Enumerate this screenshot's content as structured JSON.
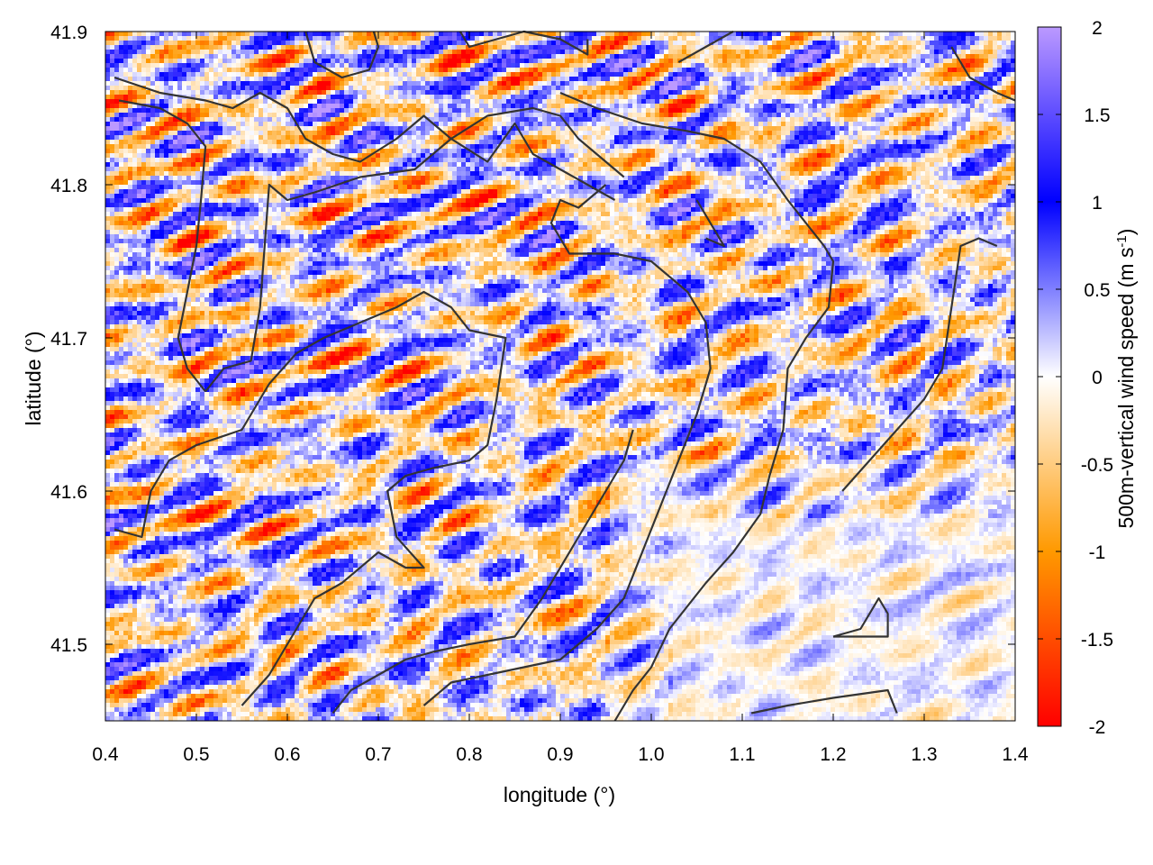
{
  "chart_data": {
    "type": "heatmap",
    "title": "",
    "xlabel": "longitude (°)",
    "ylabel": "latitude (°)",
    "xlim": [
      0.4,
      1.4
    ],
    "ylim": [
      41.45,
      41.9
    ],
    "x_ticks": [
      {
        "value": 0.4,
        "label": "0.4"
      },
      {
        "value": 0.5,
        "label": "0.5"
      },
      {
        "value": 0.6,
        "label": "0.6"
      },
      {
        "value": 0.7,
        "label": "0.7"
      },
      {
        "value": 0.8,
        "label": "0.8"
      },
      {
        "value": 0.9,
        "label": "0.9"
      },
      {
        "value": 1.0,
        "label": "1.0"
      },
      {
        "value": 1.1,
        "label": "1.1"
      },
      {
        "value": 1.2,
        "label": "1.2"
      },
      {
        "value": 1.3,
        "label": "1.3"
      },
      {
        "value": 1.4,
        "label": "1.4"
      }
    ],
    "y_ticks": [
      {
        "value": 41.5,
        "label": "41.5"
      },
      {
        "value": 41.6,
        "label": "41.6"
      },
      {
        "value": 41.7,
        "label": "41.7"
      },
      {
        "value": 41.8,
        "label": "41.8"
      },
      {
        "value": 41.9,
        "label": "41.9"
      }
    ],
    "colorbar": {
      "label_main": "500m-vertical wind speed (m s",
      "label_sup": "-1",
      "label_close": ")",
      "range": [
        -2,
        2
      ],
      "ticks": [
        {
          "value": 2,
          "label": "2"
        },
        {
          "value": 1.5,
          "label": "1.5"
        },
        {
          "value": 1,
          "label": "1"
        },
        {
          "value": 0.5,
          "label": "0.5"
        },
        {
          "value": 0,
          "label": "0"
        },
        {
          "value": -0.5,
          "label": "-0.5"
        },
        {
          "value": -1,
          "label": "-1"
        },
        {
          "value": -1.5,
          "label": "-1.5"
        },
        {
          "value": -2,
          "label": "-2"
        }
      ],
      "stops": [
        {
          "value": -2,
          "color": "#ff0000"
        },
        {
          "value": -1,
          "color": "#ff9900"
        },
        {
          "value": 0,
          "color": "#ffffff"
        },
        {
          "value": 1,
          "color": "#0000ff"
        },
        {
          "value": 2,
          "color": "#bb99ff"
        }
      ]
    },
    "field_description": "pseudo-random gridded vertical wind speed field on ~0.005° cells, values mostly between -1.5 and 1.5 m/s; calmer (near zero) in the lower-right region",
    "contours": [
      [
        [
          0.41,
          41.87
        ],
        [
          0.46,
          41.86
        ],
        [
          0.51,
          41.855
        ],
        [
          0.54,
          41.85
        ],
        [
          0.57,
          41.86
        ],
        [
          0.6,
          41.85
        ],
        [
          0.62,
          41.83
        ],
        [
          0.65,
          41.82
        ],
        [
          0.68,
          41.815
        ],
        [
          0.72,
          41.83
        ],
        [
          0.75,
          41.845
        ],
        [
          0.78,
          41.83
        ],
        [
          0.82,
          41.815
        ],
        [
          0.85,
          41.84
        ],
        [
          0.87,
          41.82
        ],
        [
          0.9,
          41.81
        ],
        [
          0.93,
          41.8
        ],
        [
          0.96,
          41.79
        ]
      ],
      [
        [
          0.415,
          41.855
        ],
        [
          0.46,
          41.85
        ],
        [
          0.49,
          41.84
        ],
        [
          0.51,
          41.825
        ],
        [
          0.505,
          41.79
        ],
        [
          0.5,
          41.76
        ],
        [
          0.49,
          41.73
        ],
        [
          0.48,
          41.7
        ],
        [
          0.49,
          41.68
        ],
        [
          0.51,
          41.665
        ]
      ],
      [
        [
          0.51,
          41.665
        ],
        [
          0.53,
          41.68
        ],
        [
          0.56,
          41.685
        ],
        [
          0.57,
          41.72
        ],
        [
          0.575,
          41.76
        ],
        [
          0.58,
          41.8
        ],
        [
          0.6,
          41.79
        ],
        [
          0.63,
          41.795
        ],
        [
          0.68,
          41.805
        ],
        [
          0.74,
          41.81
        ],
        [
          0.78,
          41.83
        ],
        [
          0.82,
          41.845
        ],
        [
          0.87,
          41.85
        ],
        [
          0.9,
          41.845
        ],
        [
          0.92,
          41.83
        ],
        [
          0.94,
          41.82
        ],
        [
          0.97,
          41.805
        ]
      ],
      [
        [
          0.62,
          41.9
        ],
        [
          0.63,
          41.88
        ],
        [
          0.66,
          41.87
        ],
        [
          0.69,
          41.875
        ],
        [
          0.7,
          41.89
        ],
        [
          0.695,
          41.9
        ]
      ],
      [
        [
          0.79,
          41.9
        ],
        [
          0.8,
          41.89
        ],
        [
          0.83,
          41.895
        ],
        [
          0.86,
          41.9
        ],
        [
          0.9,
          41.895
        ],
        [
          0.93,
          41.885
        ],
        [
          0.93,
          41.895
        ]
      ],
      [
        [
          0.9,
          41.86
        ],
        [
          0.94,
          41.85
        ],
        [
          0.99,
          41.84
        ],
        [
          1.04,
          41.835
        ],
        [
          1.08,
          41.83
        ],
        [
          1.12,
          41.815
        ],
        [
          1.15,
          41.79
        ],
        [
          1.17,
          41.775
        ],
        [
          1.19,
          41.76
        ],
        [
          1.2,
          41.75
        ],
        [
          1.195,
          41.72
        ],
        [
          1.17,
          41.7
        ],
        [
          1.15,
          41.68
        ],
        [
          1.145,
          41.64
        ],
        [
          1.13,
          41.61
        ],
        [
          1.12,
          41.585
        ],
        [
          1.09,
          41.56
        ],
        [
          1.06,
          41.54
        ],
        [
          1.02,
          41.51
        ],
        [
          1.0,
          41.485
        ],
        [
          0.98,
          41.47
        ],
        [
          0.96,
          41.45
        ]
      ],
      [
        [
          0.95,
          41.8
        ],
        [
          0.92,
          41.785
        ],
        [
          0.9,
          41.79
        ],
        [
          0.89,
          41.775
        ],
        [
          0.91,
          41.755
        ],
        [
          0.96,
          41.755
        ],
        [
          1.0,
          41.75
        ],
        [
          1.04,
          41.73
        ],
        [
          1.06,
          41.71
        ],
        [
          1.065,
          41.68
        ],
        [
          1.05,
          41.65
        ],
        [
          1.03,
          41.62
        ],
        [
          1.01,
          41.59
        ],
        [
          0.99,
          41.56
        ],
        [
          0.97,
          41.53
        ],
        [
          0.94,
          41.51
        ],
        [
          0.9,
          41.49
        ],
        [
          0.86,
          41.485
        ],
        [
          0.82,
          41.48
        ],
        [
          0.78,
          41.475
        ],
        [
          0.75,
          41.46
        ]
      ],
      [
        [
          0.41,
          41.575
        ],
        [
          0.44,
          41.57
        ],
        [
          0.45,
          41.6
        ],
        [
          0.47,
          41.62
        ],
        [
          0.5,
          41.63
        ],
        [
          0.55,
          41.64
        ],
        [
          0.58,
          41.67
        ],
        [
          0.61,
          41.69
        ],
        [
          0.64,
          41.7
        ],
        [
          0.68,
          41.71
        ],
        [
          0.72,
          41.72
        ],
        [
          0.75,
          41.73
        ],
        [
          0.78,
          41.72
        ],
        [
          0.8,
          41.705
        ],
        [
          0.84,
          41.7
        ],
        [
          0.83,
          41.66
        ],
        [
          0.82,
          41.63
        ],
        [
          0.8,
          41.62
        ],
        [
          0.76,
          41.615
        ],
        [
          0.73,
          41.61
        ],
        [
          0.71,
          41.6
        ],
        [
          0.72,
          41.57
        ],
        [
          0.75,
          41.55
        ],
        [
          0.73,
          41.55
        ],
        [
          0.7,
          41.56
        ],
        [
          0.66,
          41.54
        ],
        [
          0.63,
          41.53
        ],
        [
          0.6,
          41.5
        ],
        [
          0.58,
          41.48
        ],
        [
          0.55,
          41.46
        ]
      ],
      [
        [
          0.65,
          41.455
        ],
        [
          0.67,
          41.47
        ],
        [
          0.7,
          41.48
        ],
        [
          0.73,
          41.49
        ],
        [
          0.76,
          41.495
        ],
        [
          0.8,
          41.5
        ],
        [
          0.85,
          41.505
        ],
        [
          0.88,
          41.53
        ],
        [
          0.91,
          41.56
        ],
        [
          0.93,
          41.58
        ],
        [
          0.95,
          41.6
        ],
        [
          0.97,
          41.62
        ],
        [
          0.98,
          41.64
        ]
      ],
      [
        [
          1.03,
          41.88
        ],
        [
          1.06,
          41.89
        ],
        [
          1.09,
          41.9
        ]
      ],
      [
        [
          1.33,
          41.89
        ],
        [
          1.35,
          41.87
        ],
        [
          1.38,
          41.86
        ],
        [
          1.4,
          41.855
        ]
      ],
      [
        [
          1.11,
          41.455
        ],
        [
          1.15,
          41.46
        ],
        [
          1.2,
          41.465
        ],
        [
          1.26,
          41.47
        ],
        [
          1.27,
          41.455
        ]
      ],
      [
        [
          1.2,
          41.505
        ],
        [
          1.23,
          41.51
        ],
        [
          1.25,
          41.53
        ],
        [
          1.26,
          41.52
        ],
        [
          1.26,
          41.505
        ],
        [
          1.2,
          41.505
        ]
      ],
      [
        [
          1.21,
          41.6
        ],
        [
          1.24,
          41.62
        ],
        [
          1.27,
          41.64
        ],
        [
          1.3,
          41.66
        ],
        [
          1.32,
          41.68
        ],
        [
          1.33,
          41.72
        ],
        [
          1.34,
          41.76
        ],
        [
          1.36,
          41.765
        ],
        [
          1.38,
          41.76
        ]
      ],
      [
        [
          1.05,
          41.79
        ],
        [
          1.08,
          41.76
        ],
        [
          1.06,
          41.765
        ]
      ]
    ]
  }
}
